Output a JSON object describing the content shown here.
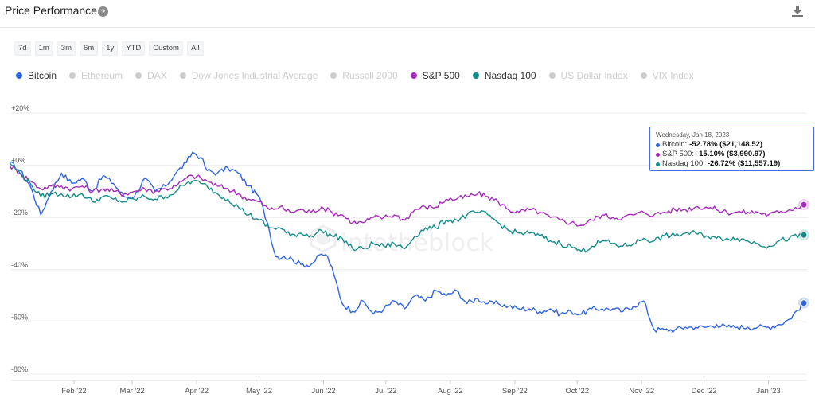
{
  "header": {
    "title": "Price Performance",
    "help_icon": "help-icon",
    "download_icon": "download-icon"
  },
  "ranges": [
    "7d",
    "1m",
    "3m",
    "6m",
    "1y",
    "YTD",
    "Custom",
    "All"
  ],
  "legend": [
    {
      "name": "Bitcoin",
      "color": "#2f64e0",
      "active": true
    },
    {
      "name": "Ethereum",
      "color": "#cccccc",
      "active": false
    },
    {
      "name": "DAX",
      "color": "#cccccc",
      "active": false
    },
    {
      "name": "Dow Jones Industrial Average",
      "color": "#cccccc",
      "active": false
    },
    {
      "name": "Russell 2000",
      "color": "#cccccc",
      "active": false
    },
    {
      "name": "S&P 500",
      "color": "#a52bba",
      "active": true
    },
    {
      "name": "Nasdaq 100",
      "color": "#158c8a",
      "active": true
    },
    {
      "name": "US Dollar Index",
      "color": "#cccccc",
      "active": false
    },
    {
      "name": "VIX Index",
      "color": "#cccccc",
      "active": false
    }
  ],
  "tooltip": {
    "date": "Wednesday, Jan 18, 2023",
    "rows": [
      {
        "label": "Bitcoin:",
        "value": "-52.78% ($21,148.52)",
        "color": "#2f64e0"
      },
      {
        "label": "S&P 500:",
        "value": "-15.10% ($3,990.97)",
        "color": "#a52bba"
      },
      {
        "label": "Nasdaq 100:",
        "value": "-26.72% ($11,557.19)",
        "color": "#158c8a"
      }
    ]
  },
  "watermark": "intotheblock",
  "chart_data": {
    "type": "line",
    "title": "Price Performance",
    "y_ticks": [
      "+20%",
      "+0%",
      "-20%",
      "-40%",
      "-60%",
      "-80%"
    ],
    "y_tick_values": [
      20,
      0,
      -20,
      -40,
      -60,
      -80
    ],
    "ylim": [
      -80,
      20
    ],
    "x_ticks": [
      "Feb '22",
      "Mar '22",
      "Apr '22",
      "May '22",
      "Jun '22",
      "Jul '22",
      "Aug '22",
      "Sep '22",
      "Oct '22",
      "Nov '22",
      "Dec '22",
      "Jan '23"
    ],
    "x_tick_days": [
      31,
      59,
      90,
      120,
      151,
      181,
      212,
      243,
      273,
      304,
      334,
      365
    ],
    "xlim": [
      0,
      382
    ],
    "grid": true,
    "series": [
      {
        "name": "Bitcoin",
        "color": "#2f64e0",
        "x": [
          0,
          5,
          10,
          15,
          20,
          25,
          30,
          35,
          40,
          45,
          50,
          55,
          60,
          65,
          70,
          75,
          80,
          85,
          88,
          92,
          95,
          100,
          105,
          110,
          115,
          120,
          124,
          128,
          132,
          136,
          140,
          145,
          150,
          153,
          156,
          160,
          165,
          170,
          175,
          180,
          185,
          190,
          195,
          200,
          205,
          210,
          215,
          220,
          225,
          230,
          235,
          240,
          245,
          250,
          255,
          260,
          265,
          270,
          275,
          280,
          285,
          290,
          295,
          300,
          305,
          310,
          315,
          320,
          325,
          330,
          335,
          340,
          345,
          350,
          355,
          360,
          365,
          370,
          375,
          382
        ],
        "values": [
          1,
          -2,
          -8,
          -19,
          -10,
          -3,
          -7,
          -5,
          -10,
          -4,
          -7,
          -12,
          -12,
          -5,
          -10,
          -8,
          -3,
          1,
          5,
          3,
          -2,
          -3,
          -1,
          -3,
          -8,
          -12,
          -22,
          -35,
          -35,
          -36,
          -38,
          -38,
          -34,
          -35,
          -42,
          -53,
          -56,
          -52,
          -57,
          -55,
          -52,
          -55,
          -50,
          -52,
          -48,
          -50,
          -48,
          -53,
          -51,
          -53,
          -53,
          -54,
          -55,
          -55,
          -56,
          -55,
          -57,
          -56,
          -57,
          -55,
          -55,
          -55,
          -56,
          -54,
          -52,
          -63,
          -63,
          -63,
          -62,
          -62,
          -62,
          -61,
          -62,
          -62,
          -62,
          -62,
          -62,
          -61,
          -59,
          -52.78
        ]
      },
      {
        "name": "S&P 500",
        "color": "#a52bba",
        "x": [
          0,
          5,
          10,
          15,
          20,
          25,
          30,
          35,
          40,
          45,
          50,
          55,
          60,
          65,
          70,
          75,
          80,
          85,
          88,
          92,
          95,
          100,
          105,
          110,
          115,
          120,
          125,
          130,
          135,
          140,
          145,
          150,
          155,
          160,
          165,
          170,
          175,
          180,
          185,
          190,
          195,
          200,
          205,
          210,
          215,
          220,
          225,
          230,
          235,
          240,
          245,
          250,
          255,
          260,
          265,
          270,
          275,
          280,
          285,
          290,
          295,
          300,
          305,
          310,
          315,
          320,
          325,
          330,
          335,
          340,
          345,
          350,
          355,
          360,
          365,
          370,
          375,
          382
        ],
        "values": [
          0,
          -3,
          -6,
          -9,
          -8,
          -8,
          -9,
          -8,
          -10,
          -9,
          -10,
          -11,
          -10,
          -9,
          -10,
          -9,
          -8,
          -5,
          -4,
          -5,
          -6,
          -8,
          -9,
          -11,
          -13,
          -14,
          -17,
          -16,
          -18,
          -17,
          -18,
          -16,
          -18,
          -19,
          -22,
          -22,
          -20,
          -20,
          -19,
          -21,
          -17,
          -16,
          -16,
          -13,
          -13,
          -12,
          -11,
          -12,
          -14,
          -17,
          -18,
          -17,
          -18,
          -20,
          -21,
          -22,
          -23,
          -21,
          -19,
          -20,
          -20,
          -19,
          -18,
          -19,
          -18,
          -17,
          -17,
          -16,
          -16,
          -17,
          -18,
          -18,
          -18,
          -18,
          -19,
          -18,
          -17,
          -15.1
        ]
      },
      {
        "name": "Nasdaq 100",
        "color": "#158c8a",
        "x": [
          0,
          5,
          10,
          15,
          20,
          25,
          30,
          35,
          40,
          45,
          50,
          55,
          60,
          65,
          70,
          75,
          80,
          85,
          88,
          92,
          95,
          100,
          105,
          110,
          115,
          120,
          125,
          130,
          135,
          140,
          145,
          150,
          155,
          160,
          165,
          170,
          175,
          180,
          185,
          190,
          195,
          200,
          205,
          210,
          215,
          220,
          225,
          230,
          235,
          240,
          245,
          250,
          255,
          260,
          265,
          270,
          275,
          280,
          285,
          290,
          295,
          300,
          305,
          310,
          315,
          320,
          325,
          330,
          335,
          340,
          345,
          350,
          355,
          360,
          365,
          370,
          375,
          382
        ],
        "values": [
          1,
          -3,
          -7,
          -12,
          -11,
          -11,
          -12,
          -11,
          -14,
          -12,
          -13,
          -14,
          -13,
          -12,
          -13,
          -12,
          -10,
          -7,
          -6,
          -7,
          -8,
          -11,
          -13,
          -16,
          -19,
          -21,
          -24,
          -24,
          -27,
          -26,
          -27,
          -25,
          -27,
          -28,
          -32,
          -32,
          -30,
          -31,
          -30,
          -32,
          -27,
          -24,
          -24,
          -21,
          -21,
          -19,
          -18,
          -19,
          -22,
          -25,
          -26,
          -26,
          -27,
          -29,
          -30,
          -31,
          -33,
          -31,
          -29,
          -30,
          -31,
          -30,
          -28,
          -29,
          -27,
          -27,
          -26,
          -26,
          -27,
          -28,
          -28,
          -28,
          -29,
          -30,
          -31,
          -29,
          -28,
          -26.72
        ]
      }
    ]
  }
}
